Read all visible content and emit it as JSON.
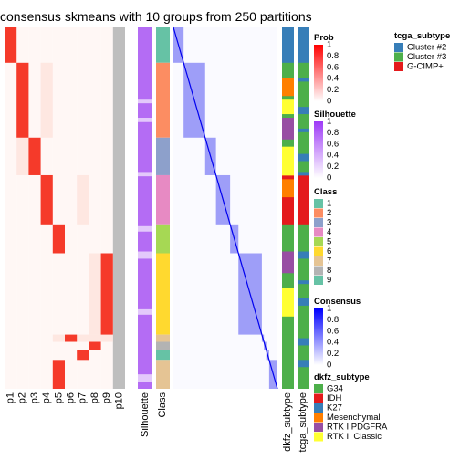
{
  "chart_data": {
    "type": "heatmap",
    "title": "consensus skmeans with 10 groups from 250 partitions",
    "prob_columns": [
      "p1",
      "p2",
      "p3",
      "p4",
      "p5",
      "p6",
      "p7",
      "p8",
      "p9",
      "p10"
    ],
    "annotation_columns": [
      "Silhouette",
      "Class"
    ],
    "right_annotation_labels": [
      "dkfz_subtype",
      "tcga_subtype"
    ],
    "class_blocks": [
      {
        "class": 1,
        "fraction": 0.098,
        "prob_col": "p1"
      },
      {
        "class": 2,
        "fraction": 0.207,
        "prob_col": "p2"
      },
      {
        "class": 3,
        "fraction": 0.104,
        "prob_col": "p3"
      },
      {
        "class": 4,
        "fraction": 0.136,
        "prob_col": "p4"
      },
      {
        "class": 5,
        "fraction": 0.08,
        "prob_col": "p5"
      },
      {
        "class": 6,
        "fraction": 0.225,
        "prob_col": "p9"
      },
      {
        "class": 7,
        "fraction": 0.02,
        "prob_col": "p6"
      },
      {
        "class": 8,
        "fraction": 0.022,
        "prob_col": "p8"
      },
      {
        "class": 9,
        "fraction": 0.028,
        "prob_col": "p7"
      },
      {
        "class": "0",
        "fraction": 0.02,
        "prob_col": "p5"
      }
    ],
    "legends": {
      "tcga_subtype": {
        "title": "tcga_subtype",
        "entries": [
          {
            "label": "Cluster #2",
            "color": "#377EB8"
          },
          {
            "label": "Cluster #3",
            "color": "#4DAF4A"
          },
          {
            "label": "G-CIMP+",
            "color": "#E41A1C"
          }
        ]
      },
      "prob": {
        "title": "Prob",
        "ticks": [
          "1",
          "0.8",
          "0.6",
          "0.4",
          "0.2",
          "0"
        ],
        "color_high": "#FF0000",
        "color_low": "#FFFFFF"
      },
      "silhouette": {
        "title": "Silhouette",
        "ticks": [
          "1",
          "0.8",
          "0.6",
          "0.4",
          "0.2",
          "0"
        ],
        "color_high": "#9E3AF7",
        "color_low": "#FFFFFF"
      },
      "class": {
        "title": "Class",
        "entries": [
          {
            "label": "1",
            "color": "#66C2A5"
          },
          {
            "label": "2",
            "color": "#FC8D62"
          },
          {
            "label": "3",
            "color": "#8DA0CB"
          },
          {
            "label": "4",
            "color": "#E78AC3"
          },
          {
            "label": "5",
            "color": "#A6D854"
          },
          {
            "label": "6",
            "color": "#FFD92F"
          },
          {
            "label": "7",
            "color": "#E5C494"
          },
          {
            "label": "8",
            "color": "#B3B3B3"
          },
          {
            "label": "9",
            "color": "#66C2A5"
          }
        ]
      },
      "consensus": {
        "title": "Consensus",
        "ticks": [
          "1",
          "0.8",
          "0.6",
          "0.4",
          "0.2",
          "0"
        ],
        "color_high": "#0000FF",
        "color_low": "#FFFFFF"
      },
      "dkfz_subtype": {
        "title": "dkfz_subtype",
        "entries": [
          {
            "label": "G34",
            "color": "#4DAF4A"
          },
          {
            "label": "IDH",
            "color": "#E41A1C"
          },
          {
            "label": "K27",
            "color": "#377EB8"
          },
          {
            "label": "Mesenchymal",
            "color": "#FF7F00"
          },
          {
            "label": "RTK I PDGFRA",
            "color": "#984EA3"
          },
          {
            "label": "RTK II Classic",
            "color": "#FFFF33"
          }
        ]
      }
    }
  }
}
